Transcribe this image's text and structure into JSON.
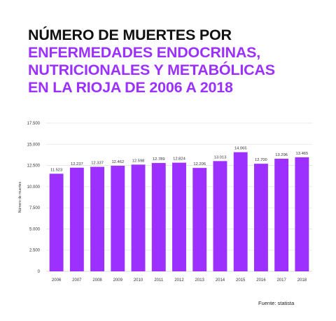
{
  "title": {
    "line1": "NÚMERO DE MUERTES POR",
    "highlight_lines": [
      "ENFERMEDADES ENDOCRINAS,",
      "NUTRICIONALES Y METABÓLICAS",
      "EN LA RIOJA DE 2006 A 2018"
    ],
    "colors": {
      "line1": "#111111",
      "highlight": "#9b30ff"
    }
  },
  "source": "Fuente: statista",
  "chart_data": {
    "type": "bar",
    "categories": [
      "2006",
      "2007",
      "2008",
      "2009",
      "2010",
      "2011",
      "2012",
      "2013",
      "2014",
      "2015",
      "2016",
      "2017",
      "2018"
    ],
    "values": [
      11523,
      12237,
      12337,
      12462,
      12598,
      12789,
      12824,
      12206,
      13013,
      14065,
      12700,
      13296,
      13465
    ],
    "value_labels": [
      "11.523",
      "12.237",
      "12.337",
      "12.462",
      "12.598",
      "12.789",
      "12.824",
      "12.206",
      "13.013",
      "14.065",
      "12.700",
      "13.296",
      "13.465"
    ],
    "ylabel": "Número de muertes",
    "xlabel": "",
    "ylim": [
      0,
      17500
    ],
    "yticks": [
      0,
      2500,
      5000,
      7500,
      10000,
      12500,
      15000,
      17500
    ],
    "ytick_labels": [
      "0",
      "2.500",
      "5.000",
      "7.500",
      "10.000",
      "12.500",
      "15.000",
      "17.500"
    ],
    "grid": true,
    "bar_color": "#9b30ff"
  }
}
